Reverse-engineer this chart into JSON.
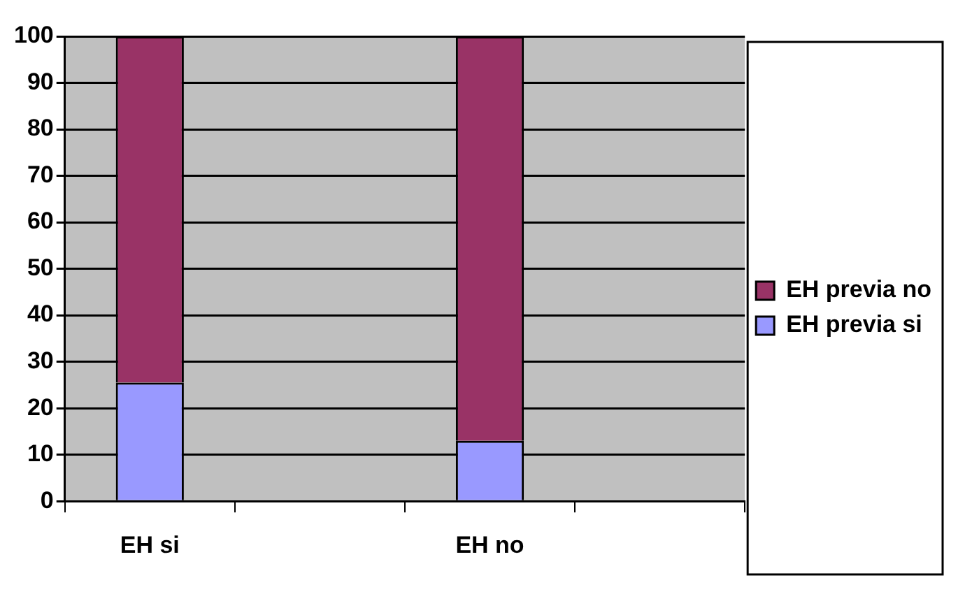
{
  "chart_data": {
    "type": "bar",
    "stacked": true,
    "categories": [
      "EH si",
      null,
      "EH no",
      null
    ],
    "series": [
      {
        "name": "EH previa si",
        "color": "#9999ff",
        "values": [
          25.5,
          null,
          13,
          null
        ]
      },
      {
        "name": "EH previa no",
        "color": "#993366",
        "values": [
          74.5,
          null,
          87,
          null
        ]
      }
    ],
    "ylim": [
      0,
      100
    ],
    "yticks": [
      0,
      10,
      20,
      30,
      40,
      50,
      60,
      70,
      80,
      90,
      100
    ],
    "grid": "y",
    "legend": "right"
  }
}
